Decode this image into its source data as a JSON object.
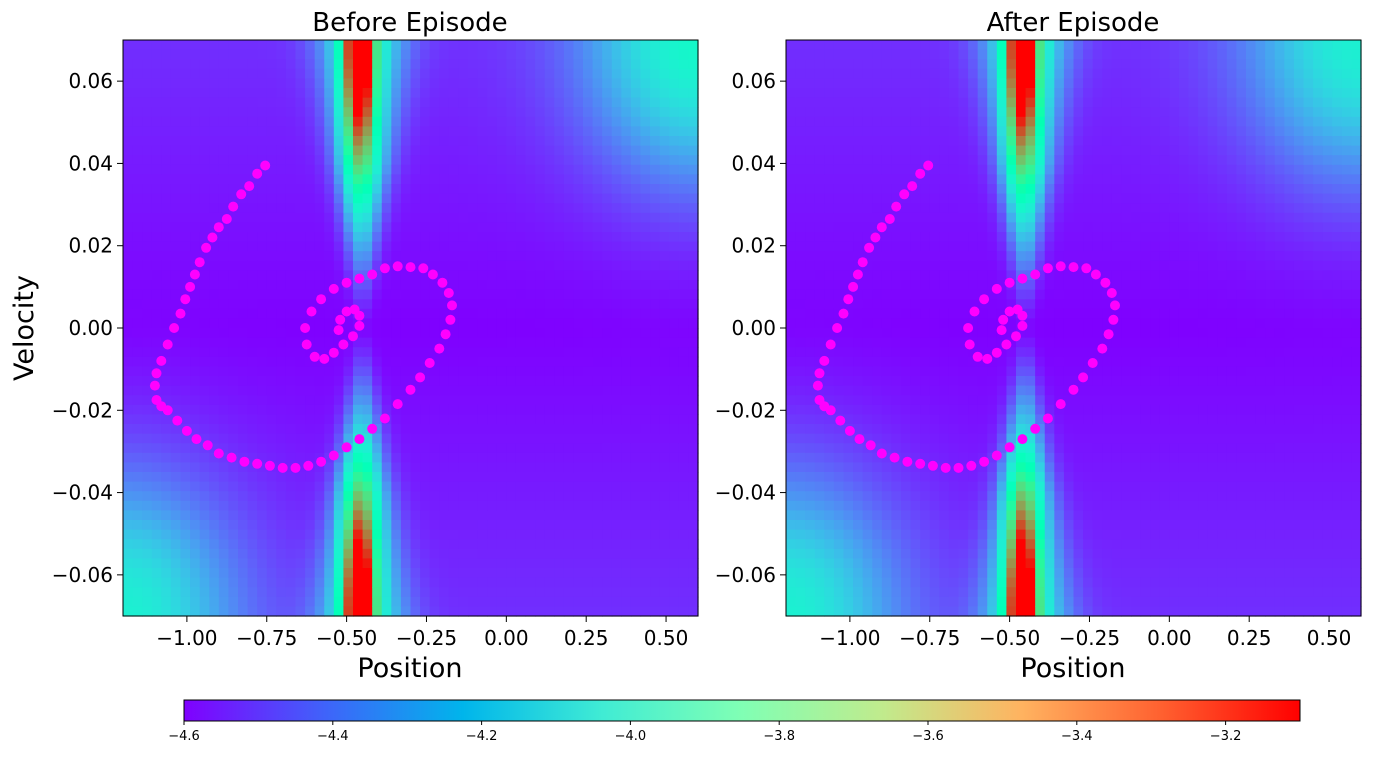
{
  "chart_data": [
    {
      "type": "heatmap",
      "title": "Before Episode",
      "xlabel": "Position",
      "ylabel": "Velocity",
      "xlim": [
        -1.2,
        0.6
      ],
      "ylim": [
        -0.07,
        0.07
      ],
      "xticks": [
        -1.0,
        -0.75,
        -0.5,
        -0.25,
        0.0,
        0.25,
        0.5
      ],
      "xtick_labels": [
        "−1.00",
        "−0.75",
        "−0.50",
        "−0.25",
        "0.00",
        "0.25",
        "0.50"
      ],
      "yticks": [
        0.06,
        0.04,
        0.02,
        0.0,
        -0.02,
        -0.04,
        -0.06
      ],
      "ytick_labels": [
        "0.06",
        "0.04",
        "0.02",
        "0.00",
        "−0.02",
        "−0.04",
        "−0.06"
      ],
      "colormap": "rainbow",
      "value_range": [
        -4.6,
        -3.1
      ],
      "trajectory": {
        "color": "#ff00ff",
        "points": [
          [
            -0.755,
            0.0395
          ],
          [
            -0.78,
            0.0375
          ],
          [
            -0.805,
            0.0345
          ],
          [
            -0.83,
            0.0325
          ],
          [
            -0.855,
            0.0295
          ],
          [
            -0.875,
            0.0265
          ],
          [
            -0.9,
            0.0245
          ],
          [
            -0.92,
            0.022
          ],
          [
            -0.94,
            0.0195
          ],
          [
            -0.96,
            0.016
          ],
          [
            -0.975,
            0.013
          ],
          [
            -0.99,
            0.01
          ],
          [
            -1.005,
            0.007
          ],
          [
            -1.02,
            0.0035
          ],
          [
            -1.04,
            0.0
          ],
          [
            -1.06,
            -0.004
          ],
          [
            -1.08,
            -0.008
          ],
          [
            -1.095,
            -0.011
          ],
          [
            -1.1,
            -0.014
          ],
          [
            -1.095,
            -0.0175
          ],
          [
            -1.08,
            -0.019
          ],
          [
            -1.06,
            -0.02
          ],
          [
            -1.03,
            -0.0225
          ],
          [
            -1.0,
            -0.025
          ],
          [
            -0.97,
            -0.027
          ],
          [
            -0.935,
            -0.0285
          ],
          [
            -0.9,
            -0.0305
          ],
          [
            -0.86,
            -0.0315
          ],
          [
            -0.82,
            -0.0325
          ],
          [
            -0.78,
            -0.033
          ],
          [
            -0.74,
            -0.0335
          ],
          [
            -0.7,
            -0.034
          ],
          [
            -0.66,
            -0.034
          ],
          [
            -0.62,
            -0.0335
          ],
          [
            -0.58,
            -0.0325
          ],
          [
            -0.54,
            -0.031
          ],
          [
            -0.5,
            -0.029
          ],
          [
            -0.46,
            -0.027
          ],
          [
            -0.42,
            -0.0245
          ],
          [
            -0.38,
            -0.022
          ],
          [
            -0.34,
            -0.0185
          ],
          [
            -0.3,
            -0.015
          ],
          [
            -0.27,
            -0.012
          ],
          [
            -0.24,
            -0.0085
          ],
          [
            -0.21,
            -0.005
          ],
          [
            -0.19,
            -0.0015
          ],
          [
            -0.175,
            0.002
          ],
          [
            -0.17,
            0.0055
          ],
          [
            -0.18,
            0.0085
          ],
          [
            -0.2,
            0.011
          ],
          [
            -0.23,
            0.013
          ],
          [
            -0.26,
            0.0145
          ],
          [
            -0.3,
            0.0148
          ],
          [
            -0.34,
            0.015
          ],
          [
            -0.38,
            0.0145
          ],
          [
            -0.42,
            0.013
          ],
          [
            -0.46,
            0.012
          ],
          [
            -0.5,
            0.011
          ],
          [
            -0.54,
            0.0095
          ],
          [
            -0.58,
            0.007
          ],
          [
            -0.61,
            0.004
          ],
          [
            -0.63,
            0.0
          ],
          [
            -0.625,
            -0.004
          ],
          [
            -0.6,
            -0.007
          ],
          [
            -0.57,
            -0.0075
          ],
          [
            -0.54,
            -0.006
          ],
          [
            -0.51,
            -0.004
          ],
          [
            -0.48,
            -0.002
          ],
          [
            -0.46,
            0.0005
          ],
          [
            -0.46,
            0.003
          ],
          [
            -0.475,
            0.0045
          ],
          [
            -0.5,
            0.004
          ],
          [
            -0.52,
            0.002
          ],
          [
            -0.525,
            -0.0005
          ]
        ]
      }
    },
    {
      "type": "heatmap",
      "title": "After Episode",
      "xlabel": "Position",
      "ylabel": "",
      "xlim": [
        -1.2,
        0.6
      ],
      "ylim": [
        -0.07,
        0.07
      ],
      "xticks": [
        -1.0,
        -0.75,
        -0.5,
        -0.25,
        0.0,
        0.25,
        0.5
      ],
      "xtick_labels": [
        "−1.00",
        "−0.75",
        "−0.50",
        "−0.25",
        "0.00",
        "0.25",
        "0.50"
      ],
      "yticks": [
        0.06,
        0.04,
        0.02,
        0.0,
        -0.02,
        -0.04,
        -0.06
      ],
      "ytick_labels": [
        "0.06",
        "0.04",
        "0.02",
        "0.00",
        "−0.02",
        "−0.04",
        "−0.06"
      ],
      "colormap": "rainbow",
      "value_range": [
        -4.6,
        -3.1
      ],
      "trajectory": {
        "color": "#ff00ff",
        "points": [
          [
            -0.755,
            0.0395
          ],
          [
            -0.78,
            0.0375
          ],
          [
            -0.805,
            0.0345
          ],
          [
            -0.83,
            0.0325
          ],
          [
            -0.855,
            0.0295
          ],
          [
            -0.875,
            0.0265
          ],
          [
            -0.9,
            0.0245
          ],
          [
            -0.92,
            0.022
          ],
          [
            -0.94,
            0.0195
          ],
          [
            -0.96,
            0.016
          ],
          [
            -0.975,
            0.013
          ],
          [
            -0.99,
            0.01
          ],
          [
            -1.005,
            0.007
          ],
          [
            -1.02,
            0.0035
          ],
          [
            -1.04,
            0.0
          ],
          [
            -1.06,
            -0.004
          ],
          [
            -1.08,
            -0.008
          ],
          [
            -1.095,
            -0.011
          ],
          [
            -1.1,
            -0.014
          ],
          [
            -1.095,
            -0.0175
          ],
          [
            -1.08,
            -0.019
          ],
          [
            -1.06,
            -0.02
          ],
          [
            -1.03,
            -0.0225
          ],
          [
            -1.0,
            -0.025
          ],
          [
            -0.97,
            -0.027
          ],
          [
            -0.935,
            -0.0285
          ],
          [
            -0.9,
            -0.0305
          ],
          [
            -0.86,
            -0.0315
          ],
          [
            -0.82,
            -0.0325
          ],
          [
            -0.78,
            -0.033
          ],
          [
            -0.74,
            -0.0335
          ],
          [
            -0.7,
            -0.034
          ],
          [
            -0.66,
            -0.034
          ],
          [
            -0.62,
            -0.0335
          ],
          [
            -0.58,
            -0.0325
          ],
          [
            -0.54,
            -0.031
          ],
          [
            -0.5,
            -0.029
          ],
          [
            -0.46,
            -0.027
          ],
          [
            -0.42,
            -0.0245
          ],
          [
            -0.38,
            -0.022
          ],
          [
            -0.34,
            -0.0185
          ],
          [
            -0.3,
            -0.015
          ],
          [
            -0.27,
            -0.012
          ],
          [
            -0.24,
            -0.0085
          ],
          [
            -0.21,
            -0.005
          ],
          [
            -0.19,
            -0.0015
          ],
          [
            -0.175,
            0.002
          ],
          [
            -0.17,
            0.0055
          ],
          [
            -0.18,
            0.0085
          ],
          [
            -0.2,
            0.011
          ],
          [
            -0.23,
            0.013
          ],
          [
            -0.26,
            0.0145
          ],
          [
            -0.3,
            0.0148
          ],
          [
            -0.34,
            0.015
          ],
          [
            -0.38,
            0.0145
          ],
          [
            -0.42,
            0.013
          ],
          [
            -0.46,
            0.012
          ],
          [
            -0.5,
            0.011
          ],
          [
            -0.54,
            0.0095
          ],
          [
            -0.58,
            0.007
          ],
          [
            -0.61,
            0.004
          ],
          [
            -0.63,
            0.0
          ],
          [
            -0.625,
            -0.004
          ],
          [
            -0.6,
            -0.007
          ],
          [
            -0.57,
            -0.0075
          ],
          [
            -0.54,
            -0.006
          ],
          [
            -0.51,
            -0.004
          ],
          [
            -0.48,
            -0.002
          ],
          [
            -0.46,
            0.0005
          ],
          [
            -0.46,
            0.003
          ],
          [
            -0.475,
            0.0045
          ],
          [
            -0.5,
            0.004
          ],
          [
            -0.52,
            0.002
          ],
          [
            -0.525,
            -0.0005
          ]
        ]
      }
    }
  ],
  "colorbar": {
    "range": [
      -4.6,
      -3.1
    ],
    "ticks": [
      -4.6,
      -4.4,
      -4.2,
      -4.0,
      -3.8,
      -3.6,
      -3.4,
      -3.2
    ],
    "tick_labels": [
      "−4.6",
      "−4.4",
      "−4.2",
      "−4.0",
      "−3.8",
      "−3.6",
      "−3.4",
      "−3.2"
    ],
    "colormap": "rainbow"
  }
}
